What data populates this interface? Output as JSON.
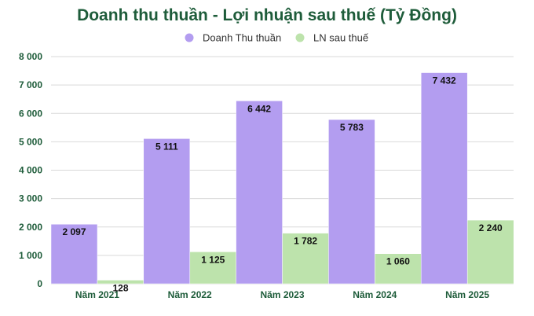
{
  "chart_data": {
    "type": "bar",
    "title": "Doanh thu thuần - Lợi nhuận sau thuế (Tỷ Đồng)",
    "categories": [
      "Năm 2021",
      "Năm 2022",
      "Năm 2023",
      "Năm 2024",
      "Năm 2025"
    ],
    "series": [
      {
        "name": "Doanh Thu thuần",
        "values": [
          2097,
          5111,
          6442,
          5783,
          7432
        ],
        "labels": [
          "2 097",
          "5 111",
          "6 442",
          "5 783",
          "7 432"
        ],
        "color": "#b39df0"
      },
      {
        "name": "LN sau thuế",
        "values": [
          128,
          1125,
          1782,
          1060,
          2240
        ],
        "labels": [
          "128",
          "1 125",
          "1 782",
          "1 060",
          "2 240"
        ],
        "color": "#bde3ac"
      }
    ],
    "ylim": [
      0,
      8000
    ],
    "yticks": [
      {
        "value": 0,
        "label": "0"
      },
      {
        "value": 1000,
        "label": "1 000"
      },
      {
        "value": 2000,
        "label": "2 000"
      },
      {
        "value": 3000,
        "label": "3 000"
      },
      {
        "value": 4000,
        "label": "4 000"
      },
      {
        "value": 5000,
        "label": "5 000"
      },
      {
        "value": 6000,
        "label": "6 000"
      },
      {
        "value": 7000,
        "label": "7 000"
      },
      {
        "value": 8000,
        "label": "8 000"
      }
    ],
    "grid": true,
    "legend": "top-center",
    "title_color": "#1e5c3a",
    "axis_text_color": "#1e5c3a",
    "label_color": "#111111"
  }
}
